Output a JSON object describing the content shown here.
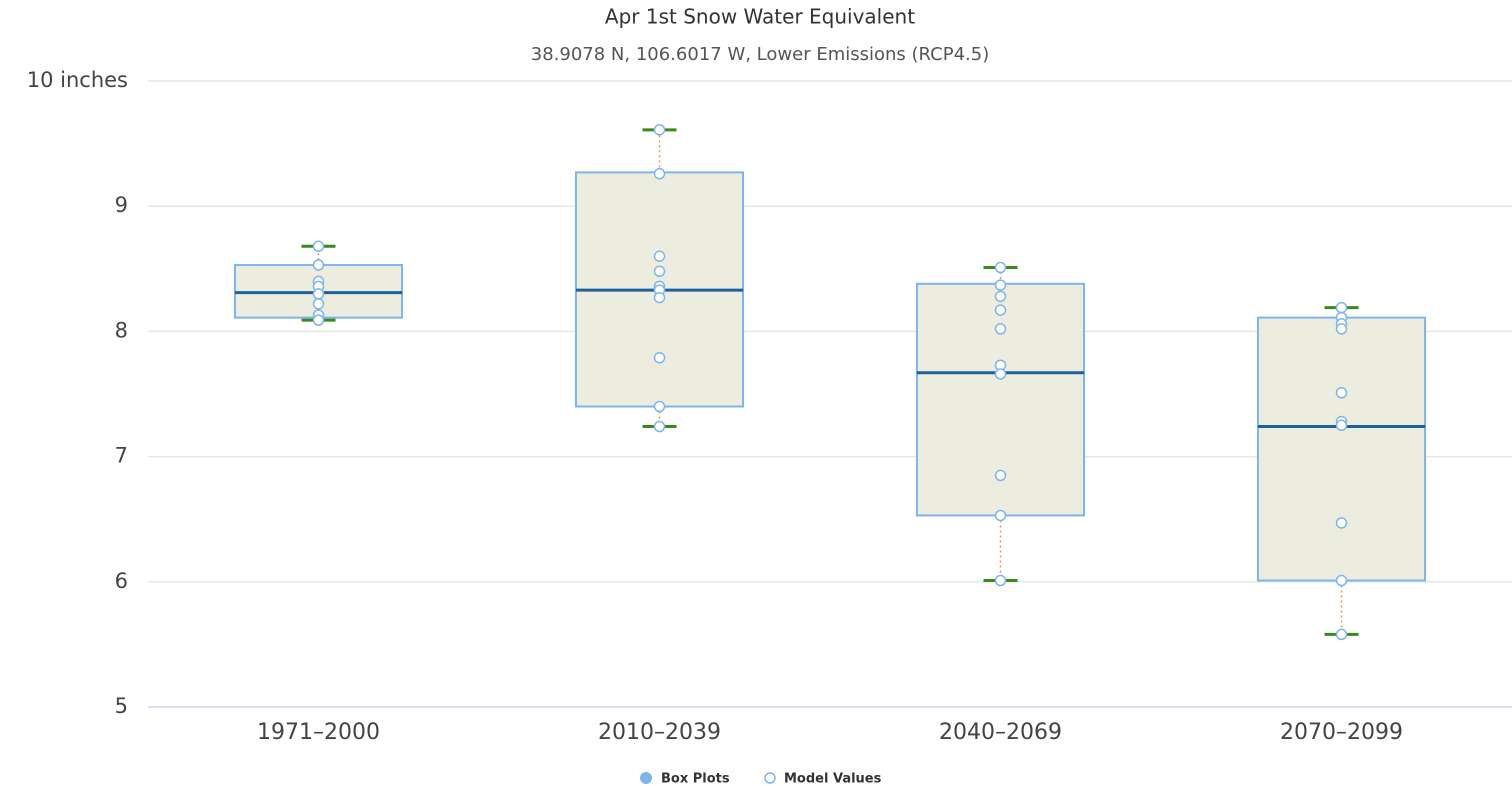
{
  "chart_data": {
    "type": "boxplot",
    "title": "Apr 1st Snow Water Equivalent",
    "subtitle": "38.9078 N, 106.6017 W, Lower Emissions (RCP4.5)",
    "categories": [
      "1971–2000",
      "2010–2039",
      "2040–2069",
      "2070–2099"
    ],
    "ylim": [
      5,
      10
    ],
    "yticks": [
      5,
      6,
      7,
      8,
      9,
      {
        "value": 10,
        "label": "10 inches"
      }
    ],
    "grid": true,
    "legend": "bottom",
    "series": [
      {
        "name": "Box Plots",
        "color": "#7cb5ec",
        "fill": "#ededdf",
        "median_color": "#1f5f9e",
        "whisker_color": "#e8906a",
        "cap_color": "#3a8a1a",
        "low": [
          8.09,
          7.24,
          6.01,
          5.58
        ],
        "q1": [
          8.11,
          7.4,
          6.53,
          6.01
        ],
        "median": [
          8.31,
          8.33,
          7.67,
          7.24
        ],
        "q3": [
          8.53,
          9.27,
          8.38,
          8.11
        ],
        "high": [
          8.68,
          9.61,
          8.51,
          8.19
        ]
      },
      {
        "name": "Model Values",
        "color": "#7cb5ec",
        "values": [
          [
            8.68,
            8.53,
            8.4,
            8.36,
            8.3,
            8.22,
            8.13,
            8.09
          ],
          [
            9.61,
            9.26,
            8.6,
            8.48,
            8.36,
            8.33,
            8.27,
            7.79,
            7.4,
            7.24
          ],
          [
            8.51,
            8.37,
            8.28,
            8.17,
            8.02,
            7.73,
            7.66,
            6.85,
            6.53,
            6.01
          ],
          [
            8.19,
            8.11,
            8.06,
            8.02,
            7.51,
            7.28,
            7.25,
            6.47,
            6.01,
            5.58
          ]
        ]
      }
    ]
  }
}
